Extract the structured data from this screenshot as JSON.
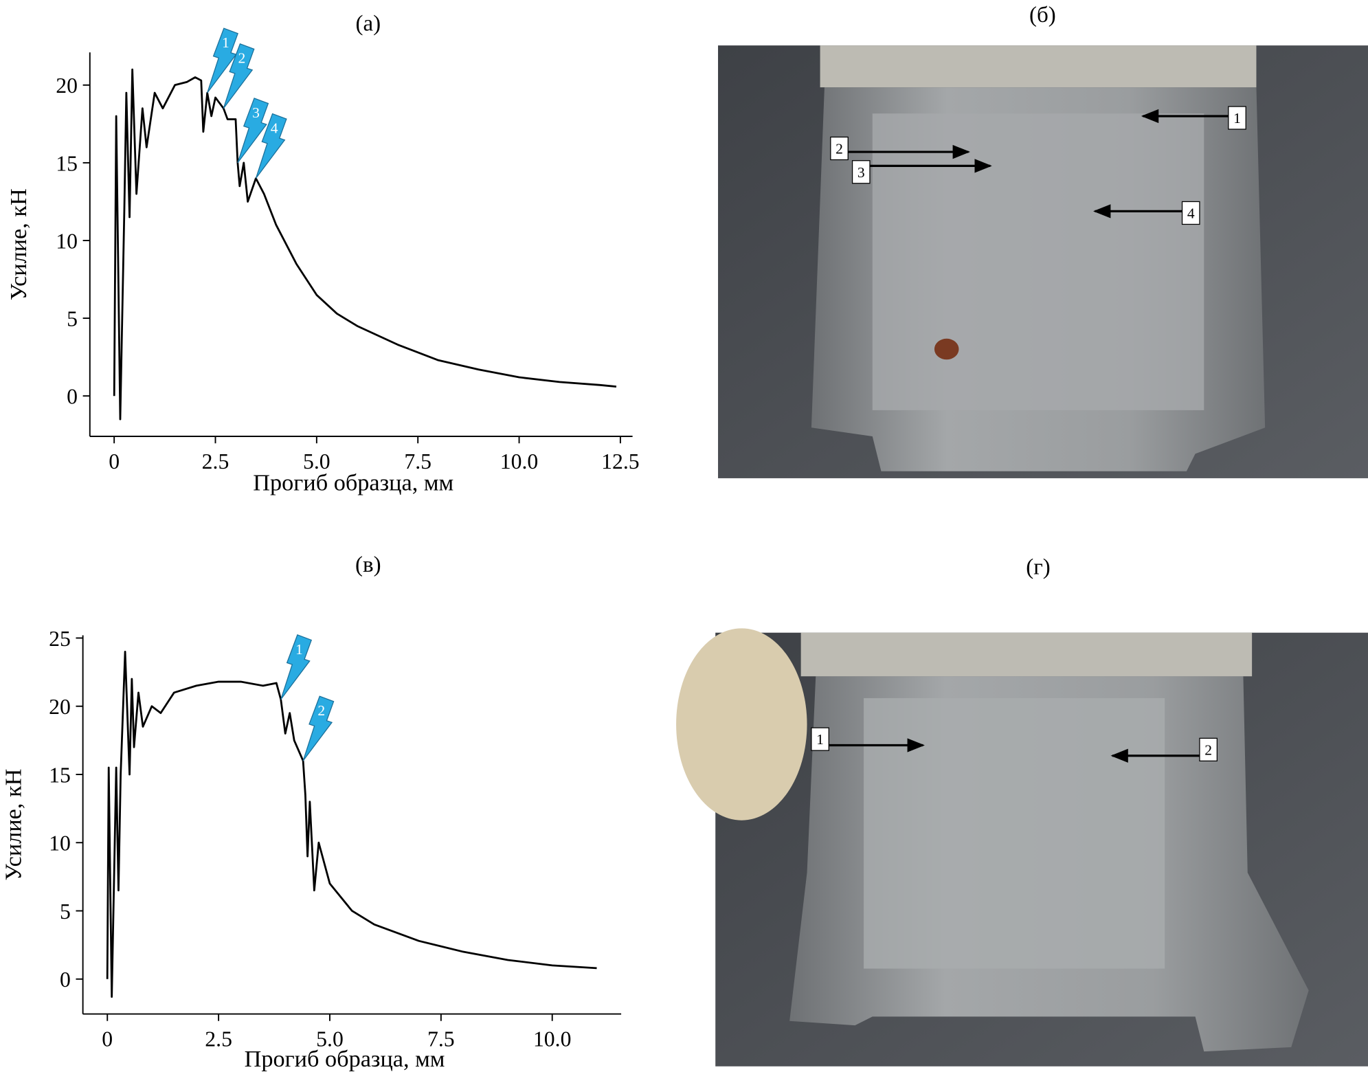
{
  "chart_data": [
    {
      "type": "line",
      "title": "(а)",
      "x_label": "Прогиб образца, мм",
      "y_label": "Усилие, кН",
      "x": [
        0,
        0.05,
        0.15,
        0.25,
        0.3,
        0.38,
        0.45,
        0.55,
        0.7,
        0.8,
        1.0,
        1.2,
        1.5,
        1.8,
        2.0,
        2.15,
        2.2,
        2.3,
        2.4,
        2.5,
        2.7,
        2.8,
        3.0,
        3.05,
        3.1,
        3.2,
        3.3,
        3.5,
        3.7,
        4.0,
        4.5,
        5.0,
        5.5,
        6.0,
        7.0,
        8.0,
        9.0,
        10.0,
        11.0,
        12.0,
        12.4
      ],
      "values": [
        0,
        18,
        -1.5,
        12,
        19.5,
        11.5,
        21,
        13,
        18.5,
        16,
        19.5,
        18.5,
        20,
        20.2,
        20.5,
        20.3,
        17,
        19.5,
        18,
        19.2,
        18.5,
        17.8,
        17.8,
        15,
        13.5,
        15,
        12.5,
        14,
        13,
        11,
        8.5,
        6.5,
        5.3,
        4.5,
        3.3,
        2.3,
        1.7,
        1.2,
        0.9,
        0.7,
        0.6
      ],
      "color": "#000000",
      "xlim": [
        -0.6,
        12.8
      ],
      "ylim": [
        -2.6,
        22.1
      ],
      "xticks": [
        0,
        2.5,
        {
          "value": 5,
          "label": "5.0"
        },
        7.5,
        {
          "value": 10,
          "label": "10.0"
        },
        12.5
      ],
      "yticks": [
        0,
        5,
        10,
        15,
        20
      ],
      "annotations": [
        "1",
        "2",
        "3",
        "4"
      ]
    },
    {
      "type": "line",
      "title": "(в)",
      "x_label": "Прогиб образца, мм",
      "y_label": "Усилие, кН",
      "x": [
        0,
        0.03,
        0.1,
        0.2,
        0.25,
        0.3,
        0.4,
        0.5,
        0.55,
        0.6,
        0.7,
        0.8,
        1.0,
        1.2,
        1.5,
        2.0,
        2.5,
        3.0,
        3.5,
        3.8,
        3.9,
        4.0,
        4.1,
        4.2,
        4.4,
        4.45,
        4.5,
        4.55,
        4.65,
        4.75,
        5.0,
        5.5,
        6.0,
        7.0,
        8.0,
        9.0,
        10.0,
        10.5,
        11.0
      ],
      "values": [
        0,
        15.5,
        -1.3,
        15.5,
        6.5,
        15,
        24,
        15,
        22,
        17,
        21,
        18.5,
        20,
        19.5,
        21,
        21.5,
        21.8,
        21.8,
        21.5,
        21.7,
        20.5,
        18,
        19.5,
        17.5,
        16,
        13.5,
        9,
        13,
        6.5,
        10,
        7,
        5,
        4,
        2.8,
        2,
        1.4,
        1,
        0.9,
        0.8
      ],
      "color": "#000000",
      "xlim": [
        -0.55,
        11.55
      ],
      "ylim": [
        -2.56,
        25.2
      ],
      "xticks": [
        0,
        2.5,
        {
          "value": 5,
          "label": "5.0"
        },
        7.5,
        {
          "value": 10,
          "label": "10.0"
        }
      ],
      "yticks": [
        0,
        5,
        10,
        15,
        20,
        25
      ],
      "annotations": [
        "1",
        "2"
      ]
    }
  ],
  "panels": [
    {
      "label": "(б)",
      "markers": [
        "1",
        "2",
        "3",
        "4"
      ]
    },
    {
      "label": "(г)",
      "markers": [
        "1",
        "2"
      ]
    }
  ]
}
